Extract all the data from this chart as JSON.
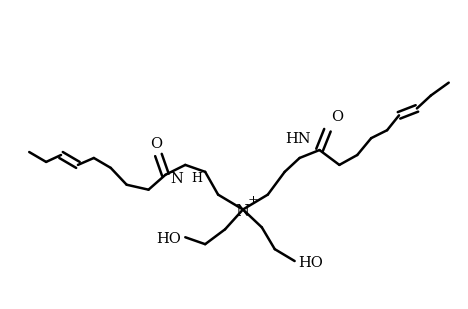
{
  "bg_color": "#ffffff",
  "lw": 1.8,
  "figsize": [
    4.68,
    3.09
  ],
  "dpi": 100,
  "xlim": [
    0,
    468
  ],
  "ylim": [
    0,
    309
  ]
}
